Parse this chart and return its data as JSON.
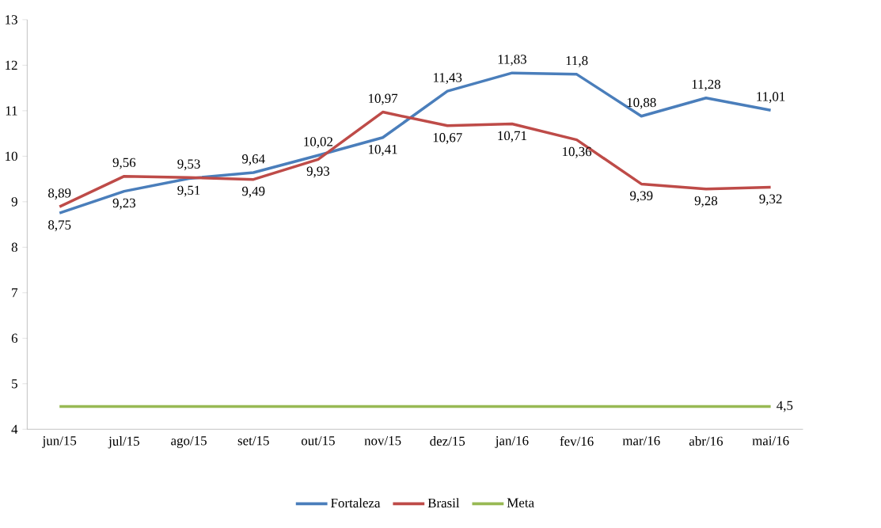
{
  "chart_data": {
    "type": "line",
    "categories": [
      "jun/15",
      "jul/15",
      "ago/15",
      "set/15",
      "out/15",
      "nov/15",
      "dez/15",
      "jan/16",
      "fev/16",
      "mar/16",
      "abr/16",
      "mai/16"
    ],
    "series": [
      {
        "name": "Fortaleza",
        "color": "#4a7ebb",
        "values": [
          8.75,
          9.23,
          9.51,
          9.64,
          10.02,
          10.41,
          11.43,
          11.83,
          11.8,
          10.88,
          11.28,
          11.01
        ],
        "value_labels": [
          "8,75",
          "9,23",
          "9,51",
          "9,64",
          "10,02",
          "10,41",
          "11,43",
          "11,83",
          "11,8",
          "10,88",
          "11,28",
          "11,01"
        ]
      },
      {
        "name": "Brasil",
        "color": "#be4b48",
        "values": [
          8.89,
          9.56,
          9.53,
          9.49,
          9.93,
          10.97,
          10.67,
          10.71,
          10.36,
          9.39,
          9.28,
          9.32
        ],
        "value_labels": [
          "8,89",
          "9,56",
          "9,53",
          "9,49",
          "9,93",
          "10,97",
          "10,67",
          "10,71",
          "10,36",
          "9,39",
          "9,28",
          "9,32"
        ]
      },
      {
        "name": "Meta",
        "color": "#98b954",
        "values": [
          4.5,
          4.5,
          4.5,
          4.5,
          4.5,
          4.5,
          4.5,
          4.5,
          4.5,
          4.5,
          4.5,
          4.5
        ],
        "value_labels": [
          null,
          null,
          null,
          null,
          null,
          null,
          null,
          null,
          null,
          null,
          null,
          "4,5"
        ]
      }
    ],
    "ylim": [
      4,
      13
    ],
    "yticks": [
      4,
      5,
      6,
      7,
      8,
      9,
      10,
      11,
      12,
      13
    ],
    "grid": false,
    "legend": "bottom",
    "marker": "none",
    "line_style": "solid"
  }
}
